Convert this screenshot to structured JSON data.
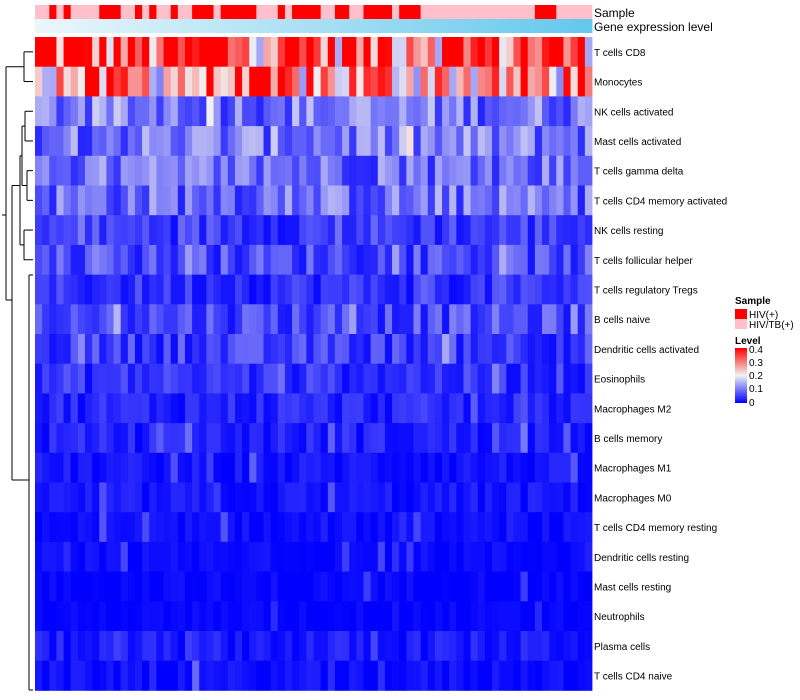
{
  "chart_data": {
    "type": "heatmap",
    "title": "",
    "annotation_tracks": [
      {
        "label": "Sample"
      },
      {
        "label": "Gene expression level"
      }
    ],
    "sample_groups": [
      {
        "name": "HIV(+)",
        "color": "#ff0000"
      },
      {
        "name": "HIV/TB(+)",
        "color": "#ffc0cb"
      }
    ],
    "sample_annotation": [
      1,
      1,
      0,
      1,
      0,
      1,
      1,
      1,
      1,
      0,
      0,
      0,
      1,
      1,
      0,
      1,
      0,
      1,
      1,
      0,
      1,
      1,
      0,
      0,
      0,
      1,
      0,
      0,
      0,
      0,
      0,
      1,
      1,
      1,
      0,
      1,
      0,
      0,
      0,
      0,
      1,
      1,
      0,
      0,
      1,
      1,
      0,
      0,
      0,
      0,
      1,
      0,
      0,
      0,
      1,
      1,
      1,
      1,
      1,
      1,
      1,
      1,
      1,
      1,
      1,
      1,
      1,
      1,
      1,
      1,
      0,
      0,
      0,
      1,
      1,
      1,
      1,
      1
    ],
    "row_labels": [
      "T cells CD8",
      "Monocytes",
      "NK cells activated",
      "Mast cells activated",
      "T cells gamma delta",
      "T cells CD4 memory activated",
      "NK cells resting",
      "T cells follicular helper",
      "T cells regulatory  Tregs",
      "B cells naive",
      "Dendritic cells activated",
      "Eosinophils",
      "Macrophages M2",
      "B cells memory",
      "Macrophages M1",
      "Macrophages M0",
      "T cells CD4 memory resting",
      "Dendritic cells resting",
      "Mast cells resting",
      "Neutrophils",
      "Plasma cells",
      "T cells CD4 naive"
    ],
    "row_mean_level": [
      0.36,
      0.27,
      0.1,
      0.1,
      0.09,
      0.09,
      0.05,
      0.06,
      0.04,
      0.06,
      0.05,
      0.04,
      0.03,
      0.025,
      0.015,
      0.015,
      0.008,
      0.006,
      0.004,
      0.002,
      0.02,
      0.01
    ],
    "legend": {
      "sample_title": "Sample",
      "sample_entries": [
        "HIV(+)",
        "HIV/TB(+)"
      ],
      "level_title": "Level",
      "level_ticks": [
        "0.4",
        "0.3",
        "0.2",
        "0.1",
        "0"
      ],
      "level_range": [
        0,
        0.4
      ],
      "colors": {
        "low": "#0000ff",
        "mid": "#f2f2f2",
        "high": "#ff0000"
      },
      "placement": "right"
    }
  }
}
